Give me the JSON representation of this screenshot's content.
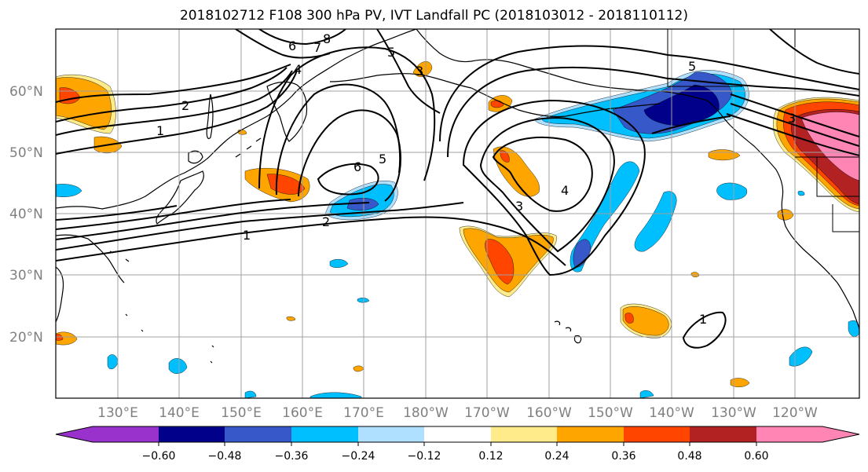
{
  "title": "2018102712 F108 300 hPa PV, IVT Landfall PC (2018103012 - 2018110112)",
  "colors": {
    "c_n060_lo": "#9932cc",
    "c_n060": "#00008b",
    "c_n048": "#3658c8",
    "c_n036": "#00bfff",
    "c_n024": "#b0e0ff",
    "c_neutral": "#ffffff",
    "c_p012": "#ffeb8a",
    "c_p024": "#ffa500",
    "c_p036": "#ff4500",
    "c_p048": "#b22222",
    "c_p060": "#ff85b4",
    "contour": "#000000",
    "coast": "#000000",
    "grid": "#a0a0a0",
    "axis_labels": "#808080"
  },
  "map": {
    "lat_labels": [
      "60°N",
      "50°N",
      "40°N",
      "30°N",
      "20°N"
    ],
    "lon_labels": [
      "130°E",
      "140°E",
      "150°E",
      "160°E",
      "170°E",
      "180°W",
      "170°W",
      "160°W",
      "150°W",
      "140°W",
      "130°W",
      "120°W"
    ],
    "contour_labels": [
      "8",
      "7",
      "6",
      "5",
      "4",
      "3",
      "2",
      "1",
      "6",
      "5",
      "4",
      "3",
      "2",
      "1",
      "5",
      "3",
      "1"
    ]
  },
  "colorbar": {
    "ticks": [
      "−0.60",
      "−0.48",
      "−0.36",
      "−0.24",
      "−0.12",
      "0.12",
      "0.24",
      "0.36",
      "0.48",
      "0.60"
    ]
  }
}
